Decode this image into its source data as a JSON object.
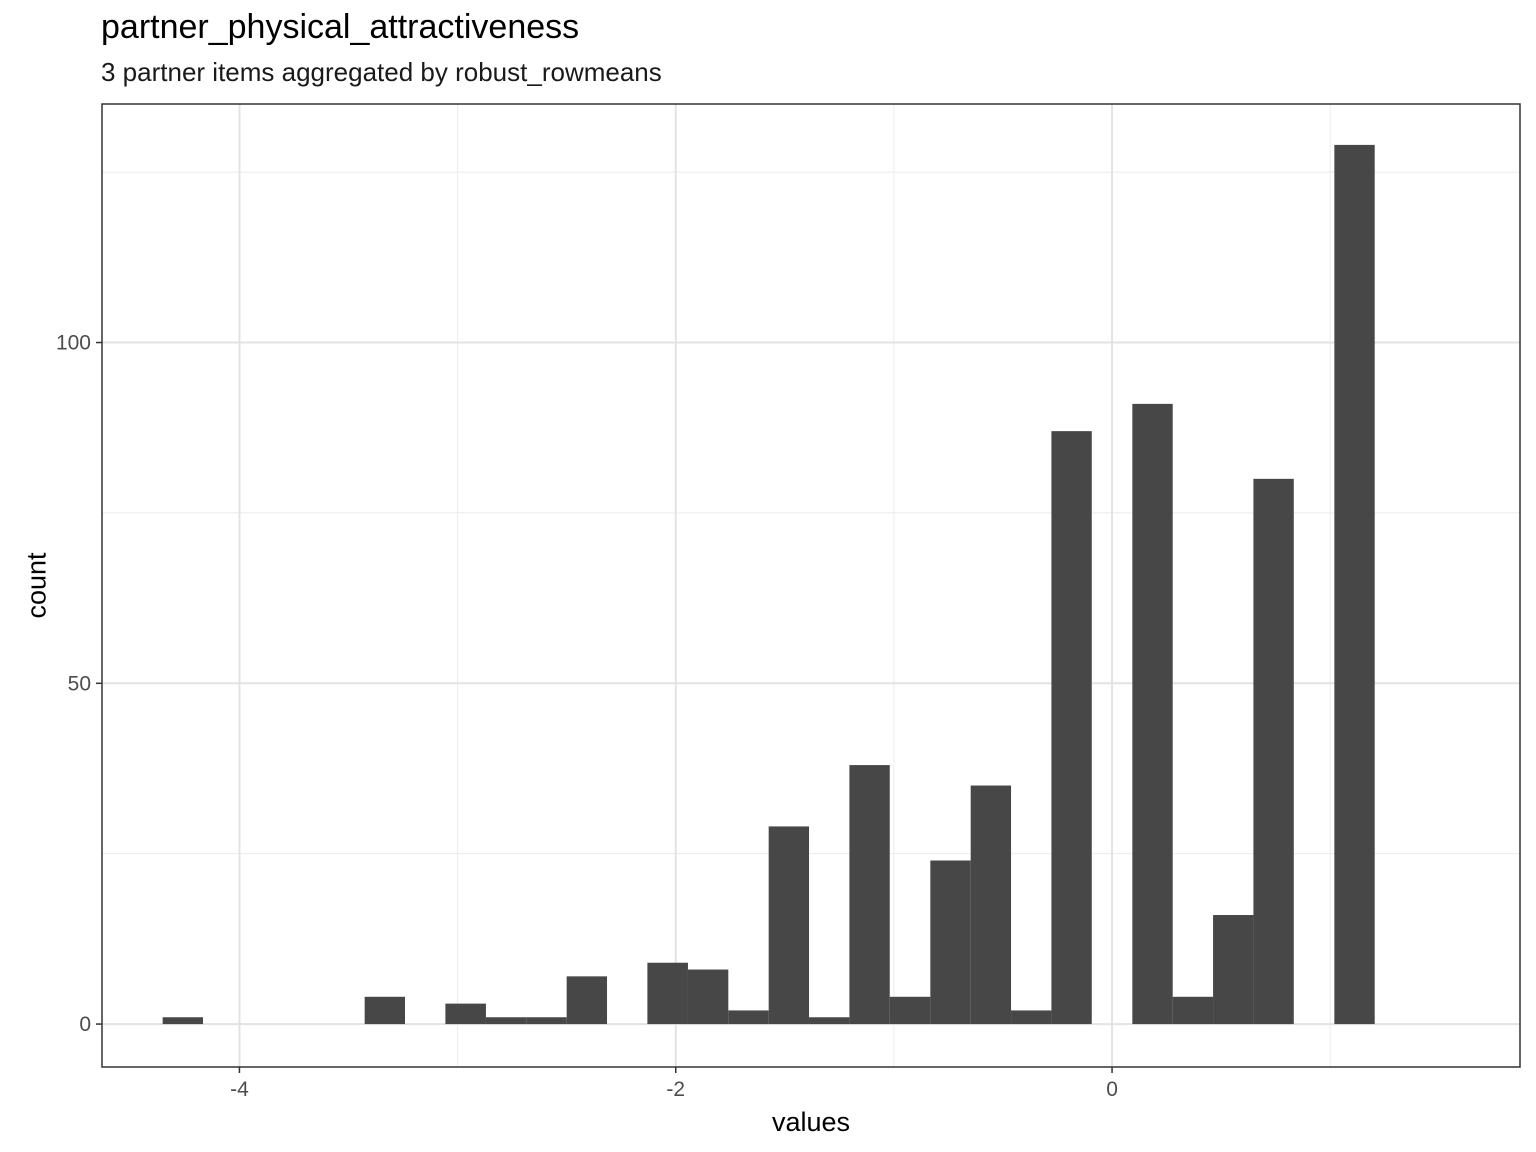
{
  "chart_data": {
    "type": "bar",
    "title": "partner_physical_attractiveness",
    "subtitle": "3 partner items aggregated by robust_rowmeans",
    "xlabel": "values",
    "ylabel": "count",
    "xlim": [
      -4.63,
      1.87
    ],
    "ylim": [
      -6.3,
      135.0
    ],
    "x_ticks": [
      -4,
      -2,
      0
    ],
    "x_tick_labels": [
      "-4",
      "-2",
      "0"
    ],
    "y_ticks": [
      0,
      50,
      100
    ],
    "y_tick_labels": [
      "0",
      "50",
      "100"
    ],
    "y_minor": [
      25,
      75,
      125
    ],
    "x_minor": [
      -3,
      -1,
      1
    ],
    "grid": true,
    "bar_color": "#474747",
    "bin_width": 0.1852,
    "bins": [
      {
        "x0": -4.352,
        "x1": -4.167,
        "count": 1
      },
      {
        "x0": -3.426,
        "x1": -3.241,
        "count": 4
      },
      {
        "x0": -3.056,
        "x1": -2.87,
        "count": 3
      },
      {
        "x0": -2.87,
        "x1": -2.685,
        "count": 1
      },
      {
        "x0": -2.685,
        "x1": -2.5,
        "count": 1
      },
      {
        "x0": -2.5,
        "x1": -2.315,
        "count": 7
      },
      {
        "x0": -2.13,
        "x1": -1.944,
        "count": 9
      },
      {
        "x0": -1.944,
        "x1": -1.759,
        "count": 8
      },
      {
        "x0": -1.759,
        "x1": -1.574,
        "count": 2
      },
      {
        "x0": -1.574,
        "x1": -1.389,
        "count": 29
      },
      {
        "x0": -1.389,
        "x1": -1.204,
        "count": 1
      },
      {
        "x0": -1.204,
        "x1": -1.019,
        "count": 38
      },
      {
        "x0": -1.019,
        "x1": -0.833,
        "count": 4
      },
      {
        "x0": -0.833,
        "x1": -0.648,
        "count": 24
      },
      {
        "x0": -0.648,
        "x1": -0.463,
        "count": 35
      },
      {
        "x0": -0.463,
        "x1": -0.278,
        "count": 2
      },
      {
        "x0": -0.278,
        "x1": -0.093,
        "count": 87
      },
      {
        "x0": 0.093,
        "x1": 0.278,
        "count": 91
      },
      {
        "x0": 0.278,
        "x1": 0.463,
        "count": 4
      },
      {
        "x0": 0.463,
        "x1": 0.648,
        "count": 16
      },
      {
        "x0": 0.648,
        "x1": 0.833,
        "count": 80
      },
      {
        "x0": 1.019,
        "x1": 1.204,
        "count": 129
      }
    ]
  }
}
